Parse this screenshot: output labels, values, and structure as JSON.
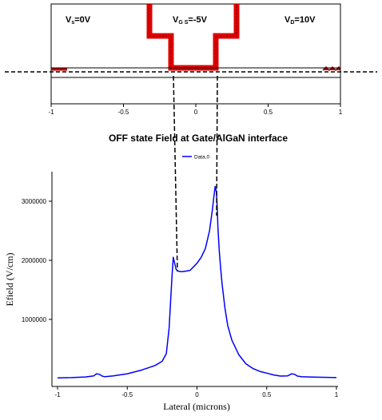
{
  "top_panel": {
    "source_label": "V",
    "source_sub": "s",
    "source_value": "=0V",
    "gate_label": "V",
    "gate_sub": "G S",
    "gate_value": "=-5V",
    "drain_label": "V",
    "drain_sub": "D",
    "drain_value": "=10V",
    "x_ticks": [
      "-1",
      "-0.5",
      "0",
      "0.5",
      "1"
    ]
  },
  "chart_data": {
    "type": "line",
    "title": "OFF state Field at Gate/AlGaN interface",
    "xlabel": "Lateral (microns)",
    "ylabel": "Efield (V/cm)",
    "xlim": [
      -1,
      1
    ],
    "ylim": [
      0,
      3500000
    ],
    "x_ticks": [
      "-1",
      "-0.5",
      "0",
      "0.5",
      "1"
    ],
    "y_ticks": [
      "1000000",
      "2000000",
      "3000000"
    ],
    "legend": {
      "placement": "top-center",
      "entries": [
        "Data.0"
      ]
    },
    "series": [
      {
        "name": "Data.0",
        "color": "#0000ff",
        "x": [
          -1.0,
          -0.9,
          -0.8,
          -0.74,
          -0.72,
          -0.7,
          -0.68,
          -0.66,
          -0.6,
          -0.5,
          -0.4,
          -0.35,
          -0.3,
          -0.25,
          -0.22,
          -0.2,
          -0.18,
          -0.17,
          -0.16,
          -0.15,
          -0.14,
          -0.12,
          -0.1,
          -0.05,
          0.0,
          0.03,
          0.06,
          0.09,
          0.11,
          0.12,
          0.13,
          0.14,
          0.145,
          0.15,
          0.16,
          0.17,
          0.18,
          0.2,
          0.22,
          0.25,
          0.3,
          0.35,
          0.4,
          0.45,
          0.5,
          0.55,
          0.6,
          0.65,
          0.68,
          0.7,
          0.72,
          0.75,
          0.8,
          0.9,
          1.0
        ],
        "y": [
          10000,
          15000,
          25000,
          45000,
          80000,
          70000,
          40000,
          30000,
          45000,
          80000,
          140000,
          180000,
          220000,
          290000,
          420000,
          850000,
          1700000,
          2050000,
          1950000,
          1850000,
          1820000,
          1810000,
          1810000,
          1830000,
          1950000,
          2050000,
          2200000,
          2500000,
          2850000,
          3050000,
          3250000,
          3150000,
          2900000,
          2550000,
          2150000,
          1850000,
          1600000,
          1200000,
          900000,
          650000,
          400000,
          250000,
          170000,
          120000,
          90000,
          60000,
          40000,
          45000,
          80000,
          70000,
          40000,
          30000,
          25000,
          20000,
          15000
        ]
      }
    ]
  }
}
